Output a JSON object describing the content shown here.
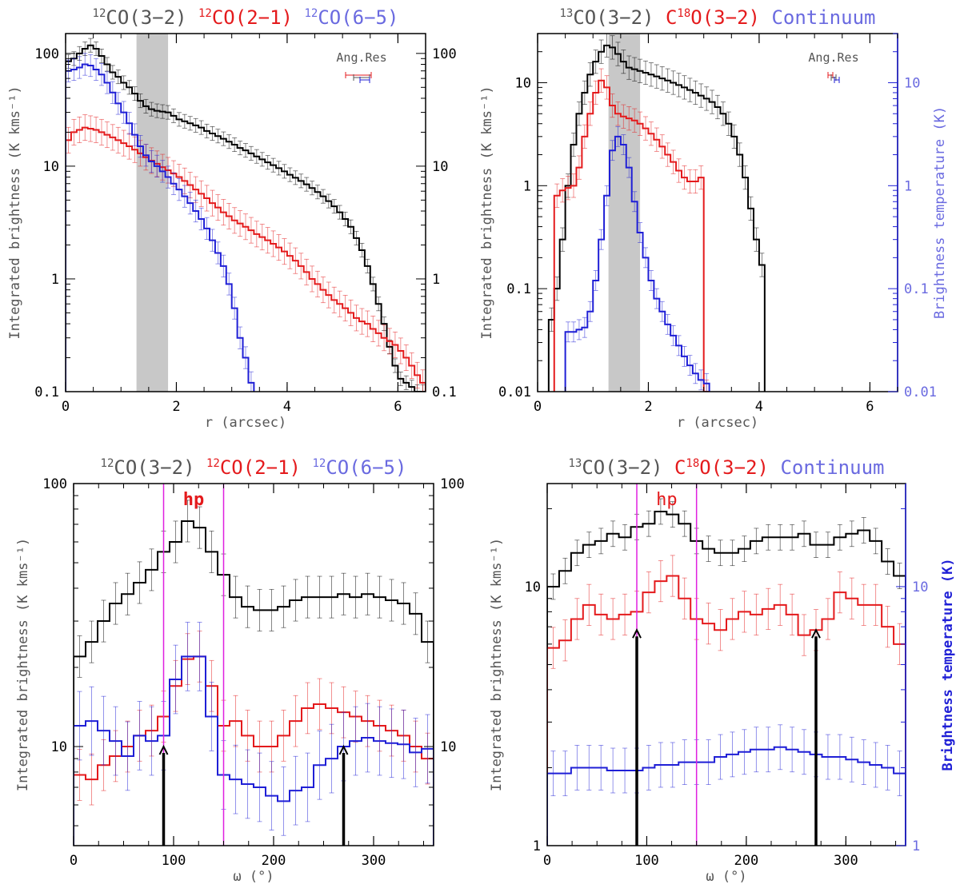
{
  "colors": {
    "black": "#000000",
    "red": "#e41a1c",
    "blue": "#1f1fd6",
    "gray_text": "#555555",
    "light_blue_text": "#6a6ae0",
    "magenta": "#e020e0",
    "shade": "#c8c8c8"
  },
  "chart_data": [
    {
      "id": "top-left",
      "type": "line",
      "step": true,
      "title_parts": [
        {
          "pre": "12",
          "text": "CO(3−2)",
          "color": "black"
        },
        {
          "pre": "12",
          "text": "CO(2−1)",
          "color": "red"
        },
        {
          "pre": "12",
          "text": "CO(6−5)",
          "color": "blue"
        }
      ],
      "xlabel": "r (arcsec)",
      "ylabel": "Integrated brightness (K kms⁻¹)",
      "xlim": [
        0,
        6.5
      ],
      "ylim": [
        0.1,
        150
      ],
      "ylog": true,
      "xticks": [
        0,
        2,
        4,
        6
      ],
      "xtick_labels": [
        "0",
        "2",
        "4",
        "6"
      ],
      "yticks": [
        0.1,
        1,
        10,
        100
      ],
      "ytick_labels": [
        "0.1",
        "1",
        "10",
        "100"
      ],
      "right_tick_labels": [
        "0.1",
        "1",
        "10",
        "100"
      ],
      "shade": [
        1.28,
        1.85
      ],
      "annotation": "Ang.Res",
      "series": [
        {
          "name": "12CO(3-2)",
          "color": "black",
          "dx": 0.1,
          "x0": 0,
          "err": 0.15,
          "values": [
            85,
            90,
            100,
            110,
            118,
            110,
            95,
            80,
            68,
            62,
            55,
            50,
            44,
            38,
            34,
            32,
            31,
            30.5,
            30,
            28,
            26,
            25,
            24,
            23,
            22,
            20.5,
            19.5,
            18.5,
            17.5,
            16.5,
            15.5,
            14.5,
            13.8,
            13,
            12.2,
            11.5,
            10.8,
            10.2,
            9.6,
            9,
            8.4,
            7.9,
            7.4,
            6.9,
            6.4,
            5.9,
            5.4,
            4.9,
            4.4,
            3.9,
            3.4,
            2.9,
            2.3,
            1.8,
            1.3,
            0.9,
            0.6,
            0.4,
            0.25,
            0.17,
            0.13,
            0.12,
            0.11,
            0.1,
            0.1
          ]
        },
        {
          "name": "12CO(2-1)",
          "color": "red",
          "dx": 0.1,
          "x0": 0,
          "err": 0.3,
          "values": [
            17,
            20,
            21,
            22,
            21.5,
            21,
            20,
            19,
            18,
            17,
            16,
            15,
            14,
            13,
            12,
            11.2,
            10.5,
            9.8,
            9.2,
            8.6,
            8,
            7.4,
            6.8,
            6.2,
            5.7,
            5.2,
            4.7,
            4.3,
            3.9,
            3.6,
            3.3,
            3.1,
            2.9,
            2.7,
            2.5,
            2.35,
            2.2,
            2.05,
            1.9,
            1.75,
            1.6,
            1.45,
            1.3,
            1.15,
            1.0,
            0.9,
            0.8,
            0.72,
            0.65,
            0.6,
            0.55,
            0.5,
            0.45,
            0.42,
            0.4,
            0.36,
            0.33,
            0.3,
            0.28,
            0.26,
            0.23,
            0.2,
            0.17,
            0.14,
            0.12
          ]
        },
        {
          "name": "12CO(6-5)",
          "color": "blue",
          "dx": 0.1,
          "x0": 0,
          "err": 0.25,
          "values": [
            70,
            72,
            75,
            80,
            78,
            72,
            65,
            55,
            45,
            36,
            30,
            24,
            19,
            15,
            12.5,
            11,
            10,
            9,
            8,
            7,
            6.2,
            5.4,
            4.7,
            4,
            3.4,
            2.8,
            2.2,
            1.7,
            1.3,
            0.9,
            0.55,
            0.3,
            0.2,
            0.12
          ]
        }
      ]
    },
    {
      "id": "top-right",
      "type": "line",
      "step": true,
      "title_parts": [
        {
          "pre": "13",
          "text": "CO(3−2)",
          "color": "black"
        },
        {
          "pre": "",
          "text": "C",
          "color": "red",
          "sup_after": "18",
          "after": "O(3−2)"
        },
        {
          "pre": "",
          "text": "Continuum",
          "color": "blue"
        }
      ],
      "xlabel": "r (arcsec)",
      "ylabel": "Integrated brightness (K kms⁻¹)",
      "ylabel_right": "Brightness temperature (K)",
      "xlim": [
        0,
        6.5
      ],
      "ylim": [
        0.01,
        30
      ],
      "ylog": true,
      "xticks": [
        0,
        2,
        4,
        6
      ],
      "xtick_labels": [
        "0",
        "2",
        "4",
        "6"
      ],
      "yticks": [
        0.01,
        0.1,
        1,
        10
      ],
      "ytick_labels": [
        "0.01",
        "0.1",
        "1",
        "10"
      ],
      "right_tick_labels": [
        "0.01",
        "0.1",
        "1",
        "10"
      ],
      "shade": [
        1.28,
        1.85
      ],
      "annotation": "Ang.Res",
      "series": [
        {
          "name": "13CO(3-2)",
          "color": "black",
          "dx": 0.1,
          "x0": 0.2,
          "err": 0.3,
          "values": [
            0.05,
            0.1,
            0.3,
            1.0,
            2.5,
            5,
            8,
            12,
            16,
            20,
            23,
            22,
            19,
            16,
            14,
            13.5,
            13,
            12.5,
            12,
            11.5,
            11,
            10.5,
            10,
            9.5,
            9,
            8.5,
            8,
            7.5,
            7,
            6.5,
            5.8,
            5,
            4,
            3,
            2,
            1.2,
            0.6,
            0.3,
            0.17
          ]
        },
        {
          "name": "C18O(3-2)",
          "color": "red",
          "dx": 0.1,
          "x0": 0.3,
          "err": 0.3,
          "values": [
            0.8,
            0.9,
            0.95,
            1.0,
            1.5,
            3,
            5,
            8,
            10.5,
            9,
            6,
            5,
            4.7,
            4.5,
            4.3,
            4.0,
            3.6,
            3.2,
            2.8,
            2.4,
            2.0,
            1.7,
            1.4,
            1.2,
            1.1,
            1.1,
            1.2,
            0.01
          ]
        },
        {
          "name": "Continuum",
          "color": "blue",
          "dx": 0.1,
          "x0": 0.5,
          "err": 0.25,
          "values": [
            0.038,
            0.038,
            0.04,
            0.042,
            0.06,
            0.12,
            0.3,
            0.8,
            2.2,
            3.0,
            2.5,
            1.5,
            0.7,
            0.35,
            0.2,
            0.12,
            0.08,
            0.06,
            0.045,
            0.035,
            0.028,
            0.022,
            0.018,
            0.015,
            0.013,
            0.012
          ]
        }
      ]
    },
    {
      "id": "bottom-left",
      "type": "line",
      "step": true,
      "title_parts": [
        {
          "pre": "12",
          "text": "CO(3−2)",
          "color": "black"
        },
        {
          "pre": "12",
          "text": "CO(2−1)",
          "color": "red"
        },
        {
          "pre": "12",
          "text": "CO(6−5)",
          "color": "blue"
        }
      ],
      "xlabel": "ω (°)",
      "ylabel": "Integrated brightness (K kms⁻¹)",
      "xlim": [
        0,
        360
      ],
      "ylim": [
        4.2,
        100
      ],
      "ylog": true,
      "xticks": [
        0,
        100,
        200,
        300
      ],
      "xtick_labels": [
        "0",
        "100",
        "200",
        "300"
      ],
      "yticks": [
        10,
        100
      ],
      "ytick_labels": [
        "10",
        "100"
      ],
      "right_tick_labels": [
        "10",
        "100"
      ],
      "vlines": [
        90,
        150
      ],
      "hp_label": "hp",
      "arrows": [
        {
          "x": 90,
          "y_top": 10
        },
        {
          "x": 270,
          "y_top": 10
        }
      ],
      "series": [
        {
          "name": "12CO(3-2)",
          "color": "black",
          "dx": 12,
          "x0": 0,
          "err": 0.2,
          "values": [
            22,
            25,
            30,
            35,
            38,
            42,
            47,
            55,
            60,
            72,
            68,
            55,
            45,
            37,
            34,
            33,
            33,
            34,
            36,
            37,
            37,
            37,
            38,
            37,
            38,
            37,
            36,
            35,
            32,
            25
          ]
        },
        {
          "name": "12CO(2-1)",
          "color": "red",
          "dx": 12,
          "x0": 0,
          "err": 0.25,
          "values": [
            7.8,
            7.5,
            8.5,
            9.2,
            10,
            11,
            11.5,
            13,
            17,
            21.5,
            22,
            17,
            12,
            12.5,
            11,
            10,
            10,
            11,
            12.5,
            14,
            14.5,
            14,
            13.5,
            13,
            12.5,
            12,
            11.5,
            11,
            10,
            9
          ]
        },
        {
          "name": "12CO(6-5)",
          "color": "blue",
          "dx": 12,
          "x0": 0,
          "err": 0.35,
          "values": [
            12,
            12.5,
            11.5,
            10.5,
            9.2,
            11,
            10.5,
            11,
            18,
            22,
            22,
            13,
            7.8,
            7.5,
            7.2,
            7,
            6.5,
            6.2,
            6.8,
            7,
            8.5,
            9,
            10,
            10.5,
            10.8,
            10.5,
            10.3,
            10.2,
            9.5,
            9.8
          ]
        }
      ]
    },
    {
      "id": "bottom-right",
      "type": "line",
      "step": true,
      "title_parts": [
        {
          "pre": "13",
          "text": "CO(3−2)",
          "color": "black"
        },
        {
          "pre": "",
          "text": "C",
          "color": "red",
          "sup_after": "18",
          "after": "O(3−2)"
        },
        {
          "pre": "",
          "text": "Continuum",
          "color": "blue"
        }
      ],
      "xlabel": "ω (°)",
      "ylabel": "Integrated brightness (K kms⁻¹)",
      "ylabel_right": "Brightness temperature (K)",
      "xlim": [
        0,
        360
      ],
      "ylim": [
        1,
        25
      ],
      "ylog": true,
      "xticks": [
        0,
        100,
        200,
        300
      ],
      "xtick_labels": [
        "0",
        "100",
        "200",
        "300"
      ],
      "yticks": [
        1,
        10
      ],
      "ytick_labels": [
        "1",
        "10"
      ],
      "right_tick_labels": [
        "1",
        "10"
      ],
      "vlines": [
        90,
        150
      ],
      "hp_label": "hp",
      "arrows": [
        {
          "x": 90,
          "y_top": 6.8
        },
        {
          "x": 270,
          "y_top": 6.8
        }
      ],
      "series": [
        {
          "name": "13CO(3-2)",
          "color": "black",
          "dx": 12,
          "x0": 0,
          "err": 0.12,
          "values": [
            10,
            11.5,
            13.5,
            14.5,
            15,
            16,
            15.5,
            17,
            17.5,
            19.5,
            19,
            17.5,
            15,
            14,
            13.5,
            13.5,
            14,
            15,
            15.5,
            15.5,
            15.5,
            16,
            14.5,
            14.5,
            15.5,
            16,
            16.5,
            15,
            12.5,
            11
          ]
        },
        {
          "name": "C18O(3-2)",
          "color": "red",
          "dx": 12,
          "x0": 0,
          "err": 0.2,
          "values": [
            5.8,
            6.2,
            7.5,
            8.5,
            7.8,
            7.5,
            7.8,
            8,
            9.5,
            10.5,
            11,
            9,
            7.5,
            7.2,
            6.8,
            7.5,
            8,
            7.8,
            8.2,
            8.5,
            7.8,
            6.5,
            6.8,
            7.5,
            9.5,
            9,
            8.5,
            8.5,
            7,
            6
          ]
        },
        {
          "name": "Continuum",
          "color": "blue",
          "dx": 12,
          "x0": 0,
          "err": 0.22,
          "values": [
            1.9,
            1.9,
            2.0,
            2.0,
            2.0,
            1.95,
            1.95,
            1.95,
            2.0,
            2.05,
            2.05,
            2.1,
            2.1,
            2.1,
            2.2,
            2.25,
            2.3,
            2.35,
            2.35,
            2.4,
            2.35,
            2.3,
            2.25,
            2.2,
            2.2,
            2.15,
            2.1,
            2.05,
            2.0,
            1.9
          ]
        }
      ]
    }
  ]
}
